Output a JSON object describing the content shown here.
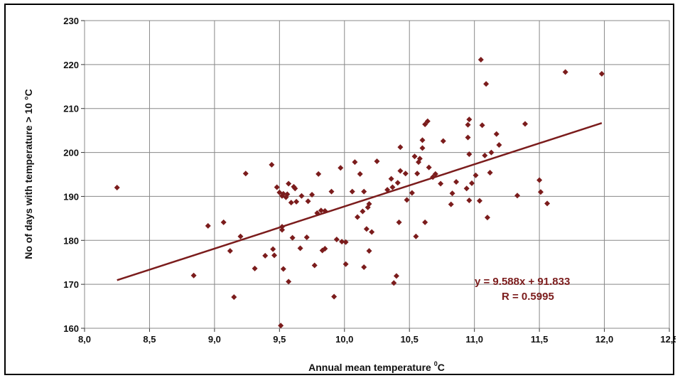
{
  "chart_data": {
    "type": "scatter",
    "title": "",
    "xlabel": "Annual mean temperature",
    "xlabel_unit_superscript": "0",
    "xlabel_unit": "C",
    "ylabel": "No of days with temperature > 10 °C",
    "xlim": [
      8.0,
      12.5
    ],
    "ylim": [
      160,
      230
    ],
    "xticks": [
      8.0,
      8.5,
      9.0,
      9.5,
      10.0,
      10.5,
      11.0,
      11.5,
      12.0,
      12.5
    ],
    "xtick_labels": [
      "8,0",
      "8,5",
      "9,0",
      "9,5",
      "10,0",
      "10,5",
      "11,0",
      "11,5",
      "12,0",
      "12,5"
    ],
    "yticks": [
      160,
      170,
      180,
      190,
      200,
      210,
      220,
      230
    ],
    "ytick_labels": [
      "160",
      "170",
      "180",
      "190",
      "200",
      "210",
      "220",
      "230"
    ],
    "grid": true,
    "legend": "none",
    "marker": "diamond",
    "color": "#7B1C1C",
    "trendline": {
      "type": "linear",
      "slope": 9.588,
      "intercept": 91.833,
      "x_range": [
        8.25,
        11.98
      ],
      "equation_label": "y = 9.588x + 91.833",
      "r_label": "R = 0.5995"
    },
    "points": [
      [
        8.25,
        192
      ],
      [
        8.84,
        172
      ],
      [
        8.95,
        183.3
      ],
      [
        9.07,
        184.1
      ],
      [
        9.12,
        177.6
      ],
      [
        9.15,
        167.1
      ],
      [
        9.2,
        180.9
      ],
      [
        9.24,
        195.2
      ],
      [
        9.31,
        173.6
      ],
      [
        9.39,
        176.5
      ],
      [
        9.44,
        197.2
      ],
      [
        9.45,
        178
      ],
      [
        9.46,
        176.6
      ],
      [
        9.48,
        192.1
      ],
      [
        9.5,
        190.9
      ],
      [
        9.51,
        160.6
      ],
      [
        9.52,
        190.1
      ],
      [
        9.52,
        183.1
      ],
      [
        9.52,
        182.4
      ],
      [
        9.53,
        190.6
      ],
      [
        9.53,
        173.5
      ],
      [
        9.55,
        189.8
      ],
      [
        9.56,
        190.5
      ],
      [
        9.57,
        170.6
      ],
      [
        9.57,
        192.9
      ],
      [
        9.59,
        188.6
      ],
      [
        9.6,
        180.6
      ],
      [
        9.61,
        192.2
      ],
      [
        9.62,
        191.8
      ],
      [
        9.63,
        188.8
      ],
      [
        9.66,
        178.2
      ],
      [
        9.67,
        190.1
      ],
      [
        9.71,
        180.7
      ],
      [
        9.72,
        188.9
      ],
      [
        9.75,
        190.4
      ],
      [
        9.77,
        174.3
      ],
      [
        9.79,
        186.2
      ],
      [
        9.8,
        195.1
      ],
      [
        9.82,
        186.8
      ],
      [
        9.83,
        177.7
      ],
      [
        9.85,
        178.1
      ],
      [
        9.85,
        186.7
      ],
      [
        9.9,
        191.1
      ],
      [
        9.92,
        167.2
      ],
      [
        9.94,
        180.2
      ],
      [
        9.97,
        196.5
      ],
      [
        9.98,
        179.7
      ],
      [
        10.01,
        179.6
      ],
      [
        10.01,
        174.6
      ],
      [
        10.06,
        191.1
      ],
      [
        10.08,
        197.8
      ],
      [
        10.1,
        185.3
      ],
      [
        10.12,
        195.1
      ],
      [
        10.14,
        186.6
      ],
      [
        10.15,
        173.9
      ],
      [
        10.15,
        191.1
      ],
      [
        10.17,
        182.6
      ],
      [
        10.18,
        187.5
      ],
      [
        10.19,
        177.6
      ],
      [
        10.19,
        188.3
      ],
      [
        10.21,
        181.9
      ],
      [
        10.25,
        198
      ],
      [
        10.33,
        191.5
      ],
      [
        10.36,
        194
      ],
      [
        10.37,
        192.1
      ],
      [
        10.38,
        170.3
      ],
      [
        10.4,
        171.9
      ],
      [
        10.41,
        193.1
      ],
      [
        10.42,
        184.1
      ],
      [
        10.43,
        201.2
      ],
      [
        10.43,
        195.8
      ],
      [
        10.47,
        195.2
      ],
      [
        10.48,
        189.2
      ],
      [
        10.52,
        190.8
      ],
      [
        10.54,
        199.1
      ],
      [
        10.55,
        180.9
      ],
      [
        10.56,
        195.2
      ],
      [
        10.57,
        197.8
      ],
      [
        10.58,
        198.6
      ],
      [
        10.6,
        202.8
      ],
      [
        10.6,
        201
      ],
      [
        10.62,
        184.1
      ],
      [
        10.62,
        206.4
      ],
      [
        10.64,
        207.1
      ],
      [
        10.65,
        196.6
      ],
      [
        10.68,
        194.4
      ],
      [
        10.7,
        195.1
      ],
      [
        10.74,
        192.9
      ],
      [
        10.76,
        202.6
      ],
      [
        10.82,
        188.2
      ],
      [
        10.83,
        190.7
      ],
      [
        10.86,
        193.3
      ],
      [
        10.94,
        191.8
      ],
      [
        10.95,
        203.4
      ],
      [
        10.95,
        206.3
      ],
      [
        10.96,
        207.5
      ],
      [
        10.96,
        199.6
      ],
      [
        10.96,
        189.1
      ],
      [
        10.98,
        193
      ],
      [
        11.01,
        194.8
      ],
      [
        11.04,
        189
      ],
      [
        11.05,
        221.1
      ],
      [
        11.06,
        206.2
      ],
      [
        11.08,
        199.3
      ],
      [
        11.09,
        215.6
      ],
      [
        11.1,
        185.2
      ],
      [
        11.12,
        195.4
      ],
      [
        11.13,
        200
      ],
      [
        11.17,
        204.2
      ],
      [
        11.19,
        201.7
      ],
      [
        11.33,
        190.2
      ],
      [
        11.39,
        206.5
      ],
      [
        11.5,
        193.7
      ],
      [
        11.51,
        191
      ],
      [
        11.56,
        188.4
      ],
      [
        11.7,
        218.3
      ],
      [
        11.98,
        217.9
      ]
    ]
  }
}
